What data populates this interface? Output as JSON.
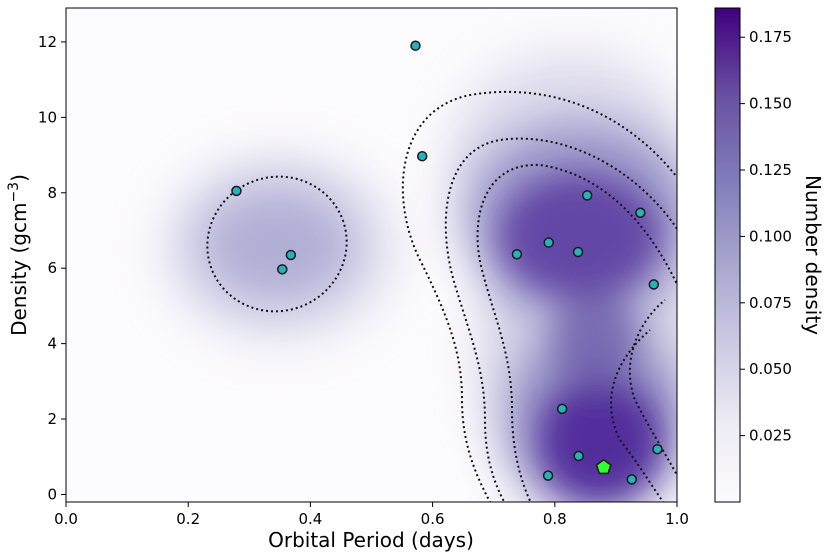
{
  "chart_data": {
    "type": "scatter",
    "title": "",
    "xlabel": "Orbital Period (days)",
    "ylabel_main": "Density (gcm",
    "ylabel_sup": "−3",
    "ylabel_close": ")",
    "colorbar_label": "Number density",
    "xlim": [
      0.0,
      1.0
    ],
    "ylim": [
      -0.2,
      12.9
    ],
    "x_ticks": [
      0.0,
      0.2,
      0.4,
      0.6,
      0.8,
      1.0
    ],
    "x_tick_labels": [
      "0.0",
      "0.2",
      "0.4",
      "0.6",
      "0.8",
      "1.0"
    ],
    "y_ticks": [
      0,
      2,
      4,
      6,
      8,
      10,
      12
    ],
    "y_tick_labels": [
      "0",
      "2",
      "4",
      "6",
      "8",
      "10",
      "12"
    ],
    "colorbar_range": [
      0.0,
      0.186
    ],
    "colorbar_ticks": [
      0.025,
      0.05,
      0.075,
      0.1,
      0.125,
      0.15,
      0.175
    ],
    "colorbar_tick_labels": [
      "0.025",
      "0.050",
      "0.075",
      "0.100",
      "0.125",
      "0.150",
      "0.175"
    ],
    "colors": {
      "marker_fill": "#2ab0b8",
      "marker_edge": "#1a1a1a",
      "highlight_fill": "#33ff33",
      "cmap_low": "#fcfbfd",
      "cmap_high": "#3f007d"
    },
    "points": [
      {
        "x": 0.572,
        "y": 11.9
      },
      {
        "x": 0.583,
        "y": 8.97
      },
      {
        "x": 0.279,
        "y": 8.05
      },
      {
        "x": 0.853,
        "y": 7.93
      },
      {
        "x": 0.94,
        "y": 7.47
      },
      {
        "x": 0.79,
        "y": 6.68
      },
      {
        "x": 0.838,
        "y": 6.43
      },
      {
        "x": 0.738,
        "y": 6.37
      },
      {
        "x": 0.368,
        "y": 6.35
      },
      {
        "x": 0.354,
        "y": 5.97
      },
      {
        "x": 0.962,
        "y": 5.57
      },
      {
        "x": 0.812,
        "y": 2.27
      },
      {
        "x": 0.968,
        "y": 1.2
      },
      {
        "x": 0.839,
        "y": 1.02
      },
      {
        "x": 0.789,
        "y": 0.5
      },
      {
        "x": 0.926,
        "y": 0.4
      }
    ],
    "highlight_point": {
      "x": 0.88,
      "y": 0.72,
      "marker": "pentagon"
    }
  }
}
